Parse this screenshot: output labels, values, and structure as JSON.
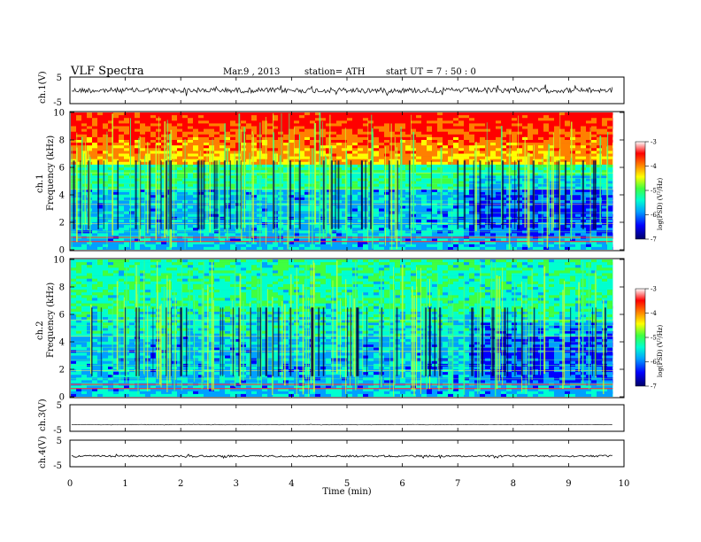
{
  "header": {
    "title": "VLF  Spectra",
    "date": "Mar.9  , 2013",
    "station": "station= ATH",
    "start": "start  UT  =    7 : 50 : 0"
  },
  "chart_data": [
    {
      "type": "line",
      "id": "ch1_waveform",
      "ylabel": "ch.1(V)",
      "yticks": [
        "5",
        "-5"
      ],
      "ylim": [
        -5,
        5
      ],
      "xlim": [
        0,
        10
      ],
      "baseline": 0,
      "noise_amplitude": 1.0,
      "data_end_min": 9.8
    },
    {
      "type": "heatmap",
      "id": "ch1_spectrogram",
      "ylabel_channel": "ch.1",
      "ylabel": "Frequency  (kHz)",
      "yticks": [
        "0",
        "2",
        "4",
        "6",
        "8",
        "10"
      ],
      "ylim": [
        0,
        10
      ],
      "xlim": [
        0,
        10
      ],
      "data_end_min": 9.8,
      "colorbar": {
        "label": "log(PSD) (V²/Hz)",
        "ticks": [
          "-3",
          "-4",
          "-5",
          "-6",
          "-7"
        ],
        "range": [
          -7,
          -3
        ]
      }
    },
    {
      "type": "heatmap",
      "id": "ch2_spectrogram",
      "ylabel_channel": "ch.2",
      "ylabel": "Frequency  (kHz)",
      "yticks": [
        "0",
        "2",
        "4",
        "6",
        "8",
        "10"
      ],
      "ylim": [
        0,
        10
      ],
      "xlim": [
        0,
        10
      ],
      "data_end_min": 9.8,
      "colorbar": {
        "label": "log(PSD) (V²/Hz)",
        "ticks": [
          "-3",
          "-4",
          "-5",
          "-6",
          "-7"
        ],
        "range": [
          -7,
          -3
        ]
      }
    },
    {
      "type": "line",
      "id": "ch3_waveform",
      "ylabel": "ch.3(V)",
      "yticks": [
        "5",
        "-5"
      ],
      "ylim": [
        -5,
        5
      ],
      "xlim": [
        0,
        10
      ],
      "baseline": -2.5,
      "noise_amplitude": 0.1,
      "data_end_min": 9.8
    },
    {
      "type": "line",
      "id": "ch4_waveform",
      "ylabel": "ch.4(V)",
      "yticks": [
        "5",
        "-5"
      ],
      "ylim": [
        -5,
        5
      ],
      "xlim": [
        0,
        10
      ],
      "baseline": -1.0,
      "noise_amplitude": 0.35,
      "data_end_min": 9.8
    }
  ],
  "xaxis": {
    "label": "Time  (min)",
    "ticks": [
      "0",
      "1",
      "2",
      "3",
      "4",
      "5",
      "6",
      "7",
      "8",
      "9",
      "10"
    ],
    "range": [
      0,
      10
    ]
  },
  "colors": {
    "colormap": [
      "#000066",
      "#0000ff",
      "#00a0ff",
      "#00ffd0",
      "#40ff40",
      "#ffff00",
      "#ff8000",
      "#ff0000",
      "#ffffff"
    ]
  }
}
